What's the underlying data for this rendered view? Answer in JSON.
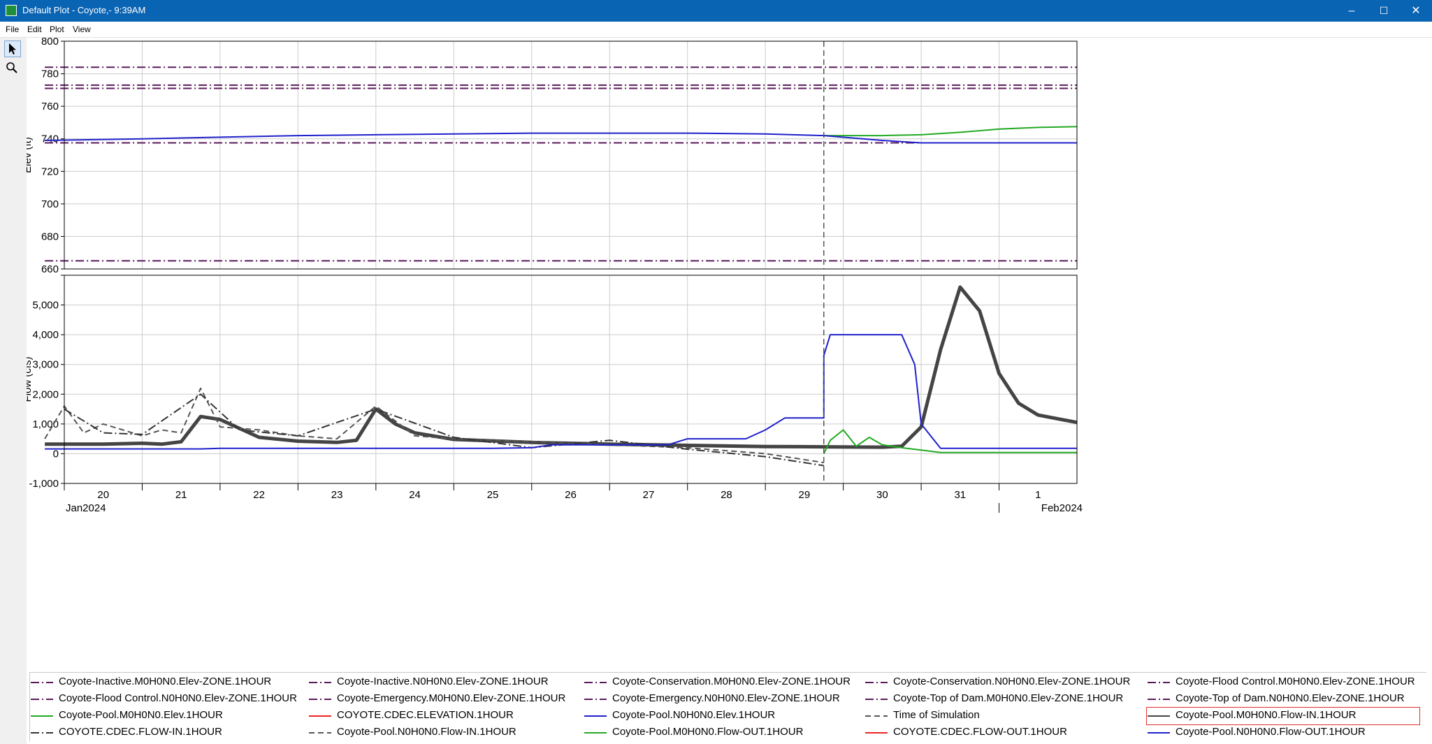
{
  "window": {
    "title": "Default Plot - Coyote,- 9:39AM",
    "min_glyph": "–",
    "max_glyph": "☐",
    "close_glyph": "✕"
  },
  "menu": {
    "items": [
      "File",
      "Edit",
      "Plot",
      "View"
    ]
  },
  "toolbox": {
    "tools": [
      {
        "icon": "pointer-icon",
        "active": true
      },
      {
        "icon": "zoom-icon",
        "active": false
      }
    ]
  },
  "chart_data": [
    {
      "type": "line",
      "ylabel": "Elev (ft)",
      "ylim": [
        660,
        800
      ],
      "yticks": [
        660,
        680,
        700,
        720,
        740,
        760,
        780,
        800
      ],
      "ytick_labels": [
        "660",
        "680",
        "700",
        "720",
        "740",
        "760",
        "780",
        "800"
      ],
      "xlim": [
        "2024-01-20 00:00",
        "2024-02-02 00:00"
      ],
      "grid": true,
      "series": [
        {
          "name": "Coyote-Top of Dam.M0H0N0.Elev-ZONE.1HOUR",
          "color": "#5a1a5a",
          "style": "dashdot",
          "points": [
            [
              "2024-01-19 18:00",
              784
            ],
            [
              "2024-02-02 00:00",
              784
            ]
          ]
        },
        {
          "name": "Coyote-Flood Control.M0H0N0.Elev-ZONE.1HOUR",
          "color": "#5a1a5a",
          "style": "dashdot",
          "points": [
            [
              "2024-01-19 18:00",
              773
            ],
            [
              "2024-02-02 00:00",
              773
            ]
          ]
        },
        {
          "name": "Coyote-Emergency.M0H0N0.Elev-ZONE.1HOUR",
          "color": "#5a1a5a",
          "style": "dashdot",
          "points": [
            [
              "2024-01-19 18:00",
              771
            ],
            [
              "2024-02-02 00:00",
              771
            ]
          ]
        },
        {
          "name": "Coyote-Conservation.M0H0N0.Elev-ZONE.1HOUR",
          "color": "#5a1a5a",
          "style": "dashdot",
          "points": [
            [
              "2024-01-19 18:00",
              737.5
            ],
            [
              "2024-02-02 00:00",
              737.5
            ]
          ]
        },
        {
          "name": "Coyote-Inactive.M0H0N0.Elev-ZONE.1HOUR",
          "color": "#5a1a5a",
          "style": "dashdot",
          "points": [
            [
              "2024-01-19 18:00",
              665
            ],
            [
              "2024-02-02 00:00",
              665
            ]
          ]
        },
        {
          "name": "Coyote-Pool.M0H0N0.Elev.1HOUR",
          "color": "#22aa22",
          "style": "solid",
          "points": [
            [
              "2024-01-29 18:00",
              742
            ],
            [
              "2024-01-30 12:00",
              742
            ],
            [
              "2024-01-31 00:00",
              742.5
            ],
            [
              "2024-01-31 12:00",
              744
            ],
            [
              "2024-02-01 00:00",
              746
            ],
            [
              "2024-02-01 12:00",
              747
            ],
            [
              "2024-02-02 00:00",
              747.5
            ]
          ]
        },
        {
          "name": "Coyote-Pool.N0H0N0.Elev.1HOUR",
          "color": "#2020cc",
          "style": "solid",
          "points": [
            [
              "2024-01-19 18:00",
              739
            ],
            [
              "2024-01-21 00:00",
              740
            ],
            [
              "2024-01-22 00:00",
              741
            ],
            [
              "2024-01-23 00:00",
              742
            ],
            [
              "2024-01-24 00:00",
              742.5
            ],
            [
              "2024-01-25 00:00",
              743
            ],
            [
              "2024-01-26 00:00",
              743.5
            ],
            [
              "2024-01-28 00:00",
              743.5
            ],
            [
              "2024-01-29 00:00",
              743
            ],
            [
              "2024-01-29 18:00",
              742
            ],
            [
              "2024-01-30 12:00",
              739
            ],
            [
              "2024-01-31 00:00",
              737.5
            ],
            [
              "2024-02-02 00:00",
              737.5
            ]
          ]
        }
      ]
    },
    {
      "type": "line",
      "ylabel": "Flow (cfs)",
      "ylim": [
        -1000,
        6000
      ],
      "yticks": [
        -1000,
        0,
        1000,
        2000,
        3000,
        4000,
        5000,
        6000
      ],
      "ytick_labels": [
        "-1,000",
        "0",
        "1,000",
        "2,000",
        "3,000",
        "4,000",
        "5,000",
        ""
      ],
      "xlim": [
        "2024-01-20 00:00",
        "2024-02-02 00:00"
      ],
      "xtick_labels": [
        "20",
        "21",
        "22",
        "23",
        "24",
        "25",
        "26",
        "27",
        "28",
        "29",
        "30",
        "31",
        "1"
      ],
      "xtick_dates": [
        "2024-01-20 00:00",
        "2024-01-21 00:00",
        "2024-01-22 00:00",
        "2024-01-23 00:00",
        "2024-01-24 00:00",
        "2024-01-25 00:00",
        "2024-01-26 00:00",
        "2024-01-27 00:00",
        "2024-01-28 00:00",
        "2024-01-29 00:00",
        "2024-01-30 00:00",
        "2024-01-31 00:00",
        "2024-02-01 00:00"
      ],
      "month_labels": [
        "Jan2024",
        "Feb2024"
      ],
      "time_of_simulation": "2024-01-29 18:00",
      "grid": true,
      "series": [
        {
          "name": "Coyote-Pool.M0H0N0.Flow-IN.1HOUR",
          "color": "#444444",
          "style": "thick",
          "points": [
            [
              "2024-01-19 18:00",
              320
            ],
            [
              "2024-01-20 12:00",
              320
            ],
            [
              "2024-01-21 00:00",
              350
            ],
            [
              "2024-01-21 06:00",
              320
            ],
            [
              "2024-01-21 12:00",
              400
            ],
            [
              "2024-01-21 18:00",
              1250
            ],
            [
              "2024-01-22 00:00",
              1150
            ],
            [
              "2024-01-22 12:00",
              550
            ],
            [
              "2024-01-23 00:00",
              420
            ],
            [
              "2024-01-23 12:00",
              380
            ],
            [
              "2024-01-23 18:00",
              450
            ],
            [
              "2024-01-24 00:00",
              1500
            ],
            [
              "2024-01-24 06:00",
              1000
            ],
            [
              "2024-01-24 12:00",
              700
            ],
            [
              "2024-01-25 00:00",
              480
            ],
            [
              "2024-01-26 00:00",
              380
            ],
            [
              "2024-01-27 00:00",
              320
            ],
            [
              "2024-01-28 00:00",
              280
            ],
            [
              "2024-01-29 00:00",
              240
            ],
            [
              "2024-01-29 18:00",
              230
            ],
            [
              "2024-01-30 12:00",
              220
            ],
            [
              "2024-01-30 18:00",
              250
            ],
            [
              "2024-01-31 00:00",
              900
            ],
            [
              "2024-01-31 06:00",
              3500
            ],
            [
              "2024-01-31 12:00",
              5600
            ],
            [
              "2024-01-31 18:00",
              4800
            ],
            [
              "2024-02-01 00:00",
              2700
            ],
            [
              "2024-02-01 06:00",
              1700
            ],
            [
              "2024-02-01 12:00",
              1300
            ],
            [
              "2024-02-02 00:00",
              1050
            ]
          ]
        },
        {
          "name": "Coyote-Pool.N0H0N0.Flow-IN.1HOUR",
          "color": "#555555",
          "style": "dashed",
          "points": [
            [
              "2024-01-19 18:00",
              500
            ],
            [
              "2024-01-20 00:00",
              1600
            ],
            [
              "2024-01-20 06:00",
              700
            ],
            [
              "2024-01-20 12:00",
              1000
            ],
            [
              "2024-01-21 00:00",
              600
            ],
            [
              "2024-01-21 06:00",
              800
            ],
            [
              "2024-01-21 12:00",
              700
            ],
            [
              "2024-01-21 18:00",
              2200
            ],
            [
              "2024-01-22 00:00",
              900
            ],
            [
              "2024-01-22 12:00",
              800
            ],
            [
              "2024-01-23 00:00",
              600
            ],
            [
              "2024-01-23 12:00",
              500
            ],
            [
              "2024-01-24 00:00",
              1600
            ],
            [
              "2024-01-24 12:00",
              600
            ],
            [
              "2024-01-25 00:00",
              500
            ],
            [
              "2024-01-26 00:00",
              400
            ],
            [
              "2024-01-27 00:00",
              300
            ],
            [
              "2024-01-28 00:00",
              200
            ],
            [
              "2024-01-29 00:00",
              0
            ],
            [
              "2024-01-29 18:00",
              -300
            ]
          ]
        },
        {
          "name": "COYOTE.CDEC.FLOW-IN.1HOUR",
          "color": "#333333",
          "style": "dashdot",
          "points": [
            [
              "2024-01-20 00:00",
              1500
            ],
            [
              "2024-01-20 12:00",
              700
            ],
            [
              "2024-01-21 00:00",
              650
            ],
            [
              "2024-01-21 18:00",
              2000
            ],
            [
              "2024-01-22 06:00",
              800
            ],
            [
              "2024-01-23 00:00",
              600
            ],
            [
              "2024-01-24 00:00",
              1500
            ],
            [
              "2024-01-25 00:00",
              550
            ],
            [
              "2024-01-26 00:00",
              200
            ],
            [
              "2024-01-27 00:00",
              450
            ],
            [
              "2024-01-28 00:00",
              150
            ],
            [
              "2024-01-29 00:00",
              -100
            ],
            [
              "2024-01-29 18:00",
              -400
            ]
          ]
        },
        {
          "name": "Coyote-Pool.N0H0N0.Flow-OUT.1HOUR",
          "color": "#2020cc",
          "style": "solid",
          "points": [
            [
              "2024-01-19 18:00",
              160
            ],
            [
              "2024-01-21 18:00",
              160
            ],
            [
              "2024-01-22 00:00",
              180
            ],
            [
              "2024-01-25 12:00",
              180
            ],
            [
              "2024-01-26 00:00",
              200
            ],
            [
              "2024-01-26 06:00",
              300
            ],
            [
              "2024-01-27 18:00",
              300
            ],
            [
              "2024-01-28 00:00",
              500
            ],
            [
              "2024-01-28 18:00",
              500
            ],
            [
              "2024-01-29 00:00",
              800
            ],
            [
              "2024-01-29 06:00",
              1200
            ],
            [
              "2024-01-29 18:00",
              1200
            ],
            [
              "2024-01-29 18:00",
              3300
            ],
            [
              "2024-01-29 20:00",
              4000
            ],
            [
              "2024-01-30 18:00",
              4000
            ],
            [
              "2024-01-30 22:00",
              3000
            ],
            [
              "2024-01-31 00:00",
              1000
            ],
            [
              "2024-01-31 06:00",
              180
            ],
            [
              "2024-02-02 00:00",
              180
            ]
          ]
        },
        {
          "name": "Coyote-Pool.M0H0N0.Flow-OUT.1HOUR",
          "color": "#22aa22",
          "style": "solid",
          "points": [
            [
              "2024-01-29 18:00",
              0
            ],
            [
              "2024-01-29 20:00",
              450
            ],
            [
              "2024-01-30 00:00",
              800
            ],
            [
              "2024-01-30 04:00",
              250
            ],
            [
              "2024-01-30 08:00",
              550
            ],
            [
              "2024-01-30 12:00",
              300
            ],
            [
              "2024-01-30 18:00",
              200
            ],
            [
              "2024-01-31 00:00",
              120
            ],
            [
              "2024-01-31 06:00",
              40
            ],
            [
              "2024-02-02 00:00",
              40
            ]
          ]
        }
      ]
    }
  ],
  "legend": {
    "items": [
      {
        "label": "Coyote-Inactive.M0H0N0.Elev-ZONE.1HOUR",
        "color": "#5a1a5a",
        "style": "dashdot",
        "selected": false
      },
      {
        "label": "Coyote-Inactive.N0H0N0.Elev-ZONE.1HOUR",
        "color": "#5a1a5a",
        "style": "dashdot",
        "selected": false
      },
      {
        "label": "Coyote-Conservation.M0H0N0.Elev-ZONE.1HOUR",
        "color": "#5a1a5a",
        "style": "dashdot",
        "selected": false
      },
      {
        "label": "Coyote-Conservation.N0H0N0.Elev-ZONE.1HOUR",
        "color": "#5a1a5a",
        "style": "dashdot",
        "selected": false
      },
      {
        "label": "Coyote-Flood Control.M0H0N0.Elev-ZONE.1HOUR",
        "color": "#5a1a5a",
        "style": "dashdot",
        "selected": false
      },
      {
        "label": "Coyote-Flood Control.N0H0N0.Elev-ZONE.1HOUR",
        "color": "#5a1a5a",
        "style": "dashdot",
        "selected": false
      },
      {
        "label": "Coyote-Emergency.M0H0N0.Elev-ZONE.1HOUR",
        "color": "#5a1a5a",
        "style": "dashdot",
        "selected": false
      },
      {
        "label": "Coyote-Emergency.N0H0N0.Elev-ZONE.1HOUR",
        "color": "#5a1a5a",
        "style": "dashdot",
        "selected": false
      },
      {
        "label": "Coyote-Top of Dam.M0H0N0.Elev-ZONE.1HOUR",
        "color": "#5a1a5a",
        "style": "dashdot",
        "selected": false
      },
      {
        "label": "Coyote-Top of Dam.N0H0N0.Elev-ZONE.1HOUR",
        "color": "#5a1a5a",
        "style": "dashdot",
        "selected": false
      },
      {
        "label": "Coyote-Pool.M0H0N0.Elev.1HOUR",
        "color": "#22aa22",
        "style": "solid",
        "selected": false
      },
      {
        "label": "COYOTE.CDEC.ELEVATION.1HOUR",
        "color": "#ee2222",
        "style": "solid",
        "selected": false
      },
      {
        "label": "Coyote-Pool.N0H0N0.Elev.1HOUR",
        "color": "#2020cc",
        "style": "solid",
        "selected": false
      },
      {
        "label": "Time of Simulation",
        "color": "#555555",
        "style": "dashed",
        "selected": false
      },
      {
        "label": "Coyote-Pool.M0H0N0.Flow-IN.1HOUR",
        "color": "#444444",
        "style": "solid",
        "selected": true
      },
      {
        "label": "COYOTE.CDEC.FLOW-IN.1HOUR",
        "color": "#333333",
        "style": "dashdot",
        "selected": false
      },
      {
        "label": "Coyote-Pool.N0H0N0.Flow-IN.1HOUR",
        "color": "#555555",
        "style": "dashed",
        "selected": false
      },
      {
        "label": "Coyote-Pool.M0H0N0.Flow-OUT.1HOUR",
        "color": "#22aa22",
        "style": "solid",
        "selected": false
      },
      {
        "label": "COYOTE.CDEC.FLOW-OUT.1HOUR",
        "color": "#ee2222",
        "style": "solid",
        "selected": false
      },
      {
        "label": "Coyote-Pool.N0H0N0.Flow-OUT.1HOUR",
        "color": "#2020cc",
        "style": "solid",
        "selected": false
      }
    ]
  }
}
